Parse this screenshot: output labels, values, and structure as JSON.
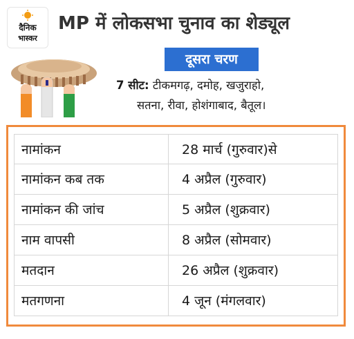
{
  "logo": {
    "line1": "दैनिक",
    "line2": "भास्कर",
    "sun_color": "#f39c12",
    "icon": "sun-logo-icon"
  },
  "headline": "MP में लोकसभा चुनाव का शेड्यूल",
  "phase": {
    "label": "दूसरा चरण",
    "color": "#2c6fd1"
  },
  "seats": {
    "count_label": "7 सीट:",
    "list_line1": " टीकमगढ़, दमोह, खजुराहो,",
    "list_line2": "सतना, रीवा, होशंगाबाद, बैतूल।"
  },
  "illustration": {
    "icon": "parliament-voting-fingers-icon",
    "colors": [
      "#f28c28",
      "#ffffff",
      "#2e9e46"
    ]
  },
  "table": {
    "border_color": "#f08a3c",
    "rows": [
      {
        "event": "नामांकन",
        "date": "28 मार्च (गुरुवार)से"
      },
      {
        "event": "नामांकन कब तक",
        "date": "4 अप्रैल  (गुरुवार)"
      },
      {
        "event": "नामांकन की जांच",
        "date": "5 अप्रैल (शुक्रवार)"
      },
      {
        "event": "नाम वापसी",
        "date": "8 अप्रैल (सोमवार)"
      },
      {
        "event": "मतदान",
        "date": "26 अप्रैल (शुक्रवार)"
      },
      {
        "event": "मतगणना",
        "date": "4 जून      (मंगलवार)"
      }
    ]
  }
}
